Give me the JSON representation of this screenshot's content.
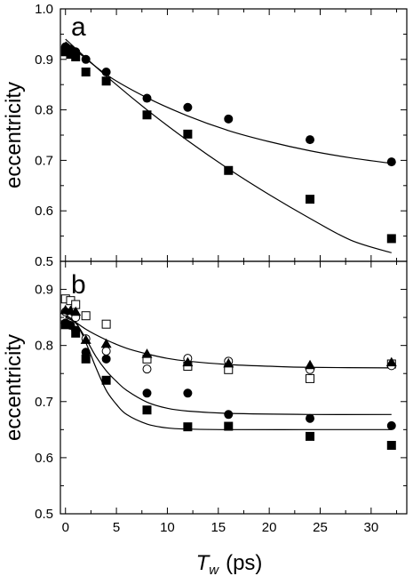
{
  "chart_data": [
    {
      "type": "scatter",
      "panel_label": "a",
      "ylabel": "eccentricity",
      "xlim": [
        -0.5,
        33.5
      ],
      "ylim": [
        0.5,
        1.0
      ],
      "xticks": [
        0,
        5,
        10,
        15,
        20,
        25,
        30
      ],
      "yticks": [
        0.5,
        0.6,
        0.7,
        0.8,
        0.9,
        1.0
      ],
      "ytick_labels": [
        "0.5",
        "0.6",
        "0.7",
        "0.8",
        "0.9",
        "1.0"
      ],
      "grid": false,
      "legend": "none",
      "series": [
        {
          "marker": "filled-circle",
          "points": [
            [
              0,
              0.925
            ],
            [
              0.5,
              0.92
            ],
            [
              1,
              0.915
            ],
            [
              2,
              0.9
            ],
            [
              4,
              0.875
            ],
            [
              8,
              0.823
            ],
            [
              12,
              0.805
            ],
            [
              16,
              0.782
            ],
            [
              24,
              0.741
            ],
            [
              32,
              0.697
            ]
          ],
          "fit": [
            [
              0,
              0.935
            ],
            [
              4,
              0.87
            ],
            [
              8,
              0.824
            ],
            [
              12,
              0.788
            ],
            [
              16,
              0.759
            ],
            [
              20,
              0.737
            ],
            [
              24,
              0.719
            ],
            [
              28,
              0.705
            ],
            [
              32,
              0.694
            ]
          ]
        },
        {
          "marker": "filled-square",
          "points": [
            [
              0,
              0.915
            ],
            [
              0.5,
              0.91
            ],
            [
              1,
              0.905
            ],
            [
              2,
              0.875
            ],
            [
              4,
              0.857
            ],
            [
              8,
              0.79
            ],
            [
              12,
              0.752
            ],
            [
              16,
              0.68
            ],
            [
              24,
              0.623
            ],
            [
              32,
              0.545
            ]
          ],
          "fit": [
            [
              0,
              0.94
            ],
            [
              4,
              0.867
            ],
            [
              8,
              0.8
            ],
            [
              12,
              0.739
            ],
            [
              16,
              0.683
            ],
            [
              20,
              0.632
            ],
            [
              24,
              0.585
            ],
            [
              28,
              0.542
            ],
            [
              32,
              0.517
            ]
          ]
        }
      ]
    },
    {
      "type": "scatter",
      "panel_label": "b",
      "ylabel": "eccentricity",
      "xlabel_main": "T",
      "xlabel_sub": "w",
      "xlabel_unit": "(ps)",
      "xlim": [
        -0.5,
        33.5
      ],
      "ylim": [
        0.5,
        0.95
      ],
      "xticks": [
        0,
        5,
        10,
        15,
        20,
        25,
        30
      ],
      "xtick_labels": [
        "0",
        "5",
        "10",
        "15",
        "20",
        "25",
        "30"
      ],
      "yticks": [
        0.5,
        0.6,
        0.7,
        0.8,
        0.9
      ],
      "ytick_labels": [
        "0.5",
        "0.6",
        "0.7",
        "0.8",
        "0.9"
      ],
      "grid": false,
      "legend": "none",
      "series": [
        {
          "marker": "open-square",
          "points": [
            [
              0,
              0.883
            ],
            [
              0.5,
              0.88
            ],
            [
              1,
              0.873
            ],
            [
              2,
              0.853
            ],
            [
              4,
              0.838
            ],
            [
              8,
              0.776
            ],
            [
              12,
              0.763
            ],
            [
              16,
              0.757
            ],
            [
              24,
              0.741
            ],
            [
              32,
              0.767
            ]
          ]
        },
        {
          "marker": "open-circle",
          "points": [
            [
              0,
              0.86
            ],
            [
              1,
              0.85
            ],
            [
              2,
              0.812
            ],
            [
              4,
              0.79
            ],
            [
              8,
              0.758
            ],
            [
              12,
              0.777
            ],
            [
              16,
              0.772
            ],
            [
              24,
              0.757
            ],
            [
              32,
              0.764
            ]
          ]
        },
        {
          "marker": "filled-triangle",
          "points": [
            [
              0,
              0.863
            ],
            [
              0.5,
              0.862
            ],
            [
              1,
              0.86
            ],
            [
              2,
              0.81
            ],
            [
              4,
              0.803
            ],
            [
              8,
              0.785
            ],
            [
              12,
              0.77
            ],
            [
              16,
              0.768
            ],
            [
              24,
              0.765
            ],
            [
              32,
              0.77
            ]
          ]
        },
        {
          "marker": "filled-circle",
          "points": [
            [
              0,
              0.84
            ],
            [
              0.5,
              0.836
            ],
            [
              1,
              0.827
            ],
            [
              2,
              0.788
            ],
            [
              4,
              0.776
            ],
            [
              8,
              0.715
            ],
            [
              12,
              0.715
            ],
            [
              16,
              0.677
            ],
            [
              24,
              0.67
            ],
            [
              32,
              0.657
            ]
          ]
        },
        {
          "marker": "filled-square",
          "points": [
            [
              0,
              0.837
            ],
            [
              1,
              0.822
            ],
            [
              2,
              0.776
            ],
            [
              4,
              0.738
            ],
            [
              8,
              0.685
            ],
            [
              12,
              0.655
            ],
            [
              16,
              0.656
            ],
            [
              24,
              0.638
            ],
            [
              32,
              0.622
            ]
          ]
        }
      ],
      "fits": [
        [
          [
            0,
            0.855
          ],
          [
            2,
            0.829
          ],
          [
            4,
            0.81
          ],
          [
            6,
            0.795
          ],
          [
            8,
            0.785
          ],
          [
            10,
            0.777
          ],
          [
            12,
            0.772
          ],
          [
            16,
            0.766
          ],
          [
            20,
            0.763
          ],
          [
            24,
            0.761
          ],
          [
            32,
            0.76
          ]
        ],
        [
          [
            0,
            0.85
          ],
          [
            1,
            0.84
          ],
          [
            2,
            0.812
          ],
          [
            3,
            0.78
          ],
          [
            4,
            0.755
          ],
          [
            5,
            0.736
          ],
          [
            6,
            0.72
          ],
          [
            8,
            0.699
          ],
          [
            10,
            0.688
          ],
          [
            12,
            0.683
          ],
          [
            16,
            0.679
          ],
          [
            24,
            0.677
          ],
          [
            32,
            0.677
          ]
        ],
        [
          [
            0,
            0.852
          ],
          [
            1,
            0.842
          ],
          [
            2,
            0.805
          ],
          [
            3,
            0.76
          ],
          [
            4,
            0.72
          ],
          [
            5,
            0.695
          ],
          [
            6,
            0.677
          ],
          [
            8,
            0.66
          ],
          [
            10,
            0.653
          ],
          [
            12,
            0.651
          ],
          [
            16,
            0.65
          ],
          [
            24,
            0.65
          ],
          [
            32,
            0.65
          ]
        ]
      ]
    }
  ]
}
